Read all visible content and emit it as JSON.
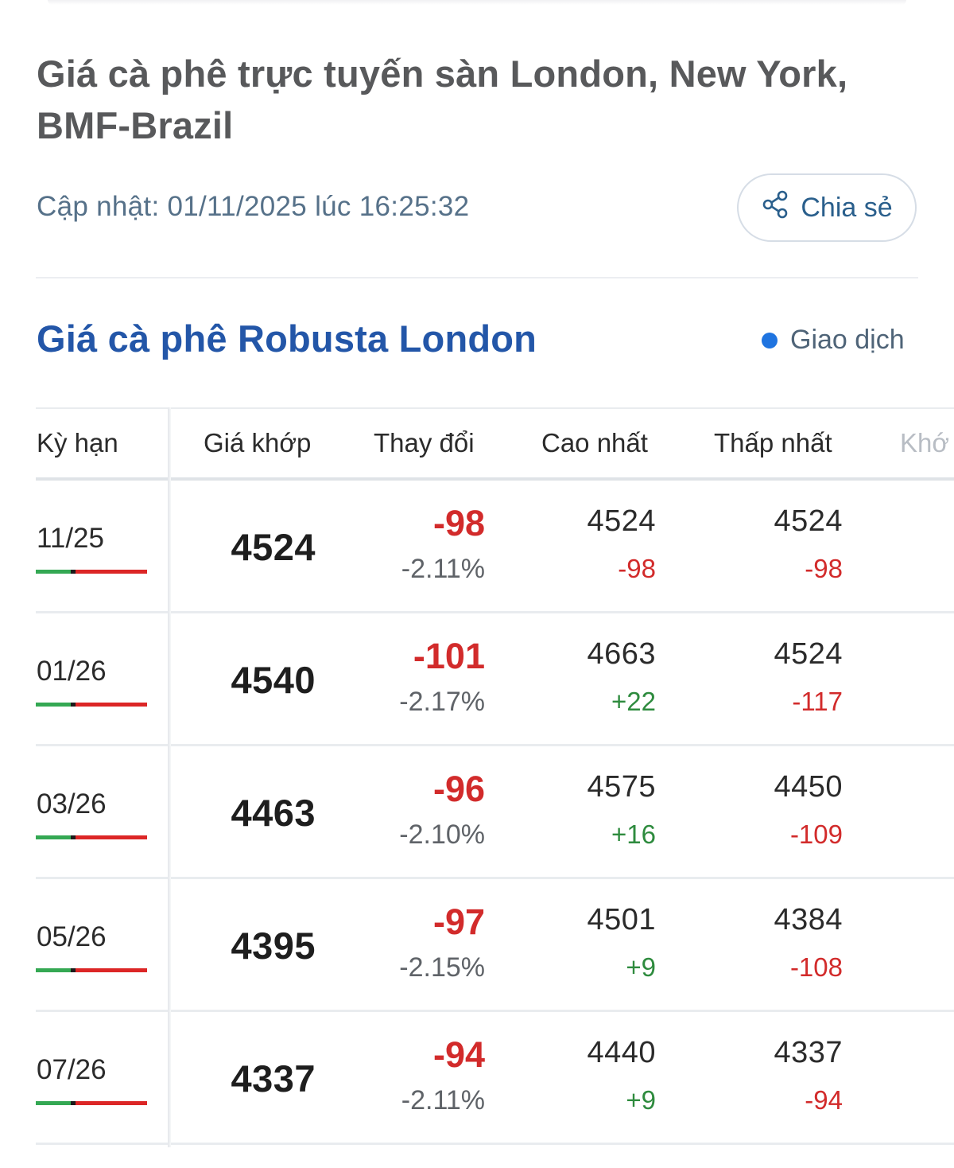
{
  "page": {
    "title": "Giá cà phê trực tuyến sàn London, New York, BMF-Brazil",
    "updated": "Cập nhật: 01/11/2025 lúc 16:25:32",
    "share_label": "Chia sẻ",
    "share_icon": "share-icon"
  },
  "section": {
    "title": "Giá cà phê Robusta London",
    "status": "Giao dịch",
    "status_color": "#1f74e0"
  },
  "table": {
    "columns": [
      "Kỳ hạn",
      "Giá khớp",
      "Thay đổi",
      "Cao nhất",
      "Thấp nhất",
      "Khớ"
    ],
    "rows": [
      {
        "term": "11/25",
        "price": "4524",
        "change": "-98",
        "pct": "-2.11%",
        "high": "4524",
        "high_chg": "-98",
        "low": "4524",
        "low_chg": "-98"
      },
      {
        "term": "01/26",
        "price": "4540",
        "change": "-101",
        "pct": "-2.17%",
        "high": "4663",
        "high_chg": "+22",
        "low": "4524",
        "low_chg": "-117"
      },
      {
        "term": "03/26",
        "price": "4463",
        "change": "-96",
        "pct": "-2.10%",
        "high": "4575",
        "high_chg": "+16",
        "low": "4450",
        "low_chg": "-109"
      },
      {
        "term": "05/26",
        "price": "4395",
        "change": "-97",
        "pct": "-2.15%",
        "high": "4501",
        "high_chg": "+9",
        "low": "4384",
        "low_chg": "-108"
      },
      {
        "term": "07/26",
        "price": "4337",
        "change": "-94",
        "pct": "-2.11%",
        "high": "4440",
        "high_chg": "+9",
        "low": "4337",
        "low_chg": "-94"
      }
    ]
  },
  "colors": {
    "title": "#58595b",
    "section_title": "#2356a8",
    "negative": "#d22b2b",
    "positive": "#2e8b3e"
  }
}
